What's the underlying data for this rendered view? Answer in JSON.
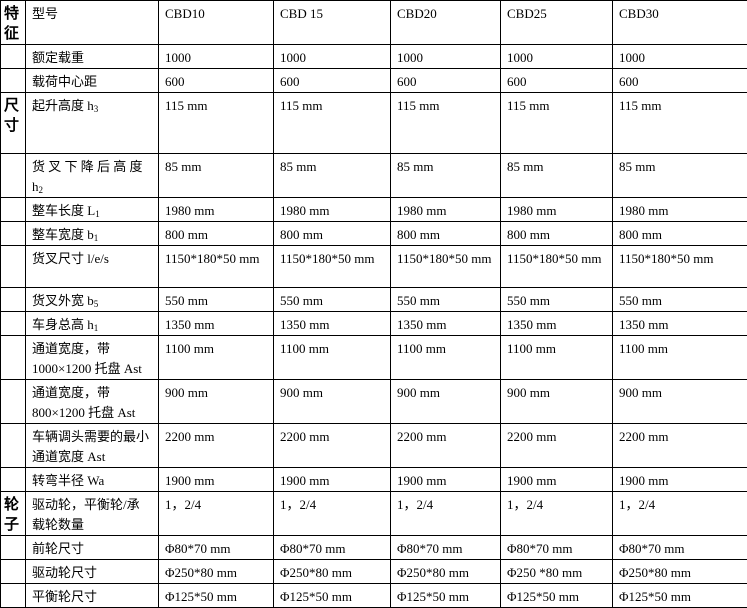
{
  "table": {
    "rows": [
      {
        "group": "特征",
        "label": "型号",
        "sub": "",
        "values": [
          "CBD10",
          "CBD 15",
          "CBD20",
          "CBD25",
          "CBD30"
        ]
      },
      {
        "group": "",
        "label": "额定载重",
        "sub": "",
        "values": [
          "1000",
          "1000",
          "1000",
          "1000",
          "1000"
        ]
      },
      {
        "group": "",
        "label": "载荷中心距",
        "sub": "",
        "values": [
          "600",
          "600",
          "600",
          "600",
          "600"
        ]
      },
      {
        "group": "尺寸",
        "label": "起升高度 h",
        "sub": "3",
        "values": [
          "115 mm",
          "115 mm",
          "115 mm",
          "115 mm",
          "115 mm"
        ]
      },
      {
        "group": "",
        "label": "货 叉 下 降 后 高 度 h",
        "sub": "2",
        "values": [
          "85 mm",
          "85 mm",
          "85 mm",
          "85 mm",
          "85 mm"
        ]
      },
      {
        "group": "",
        "label": "整车长度 L",
        "sub": "1",
        "values": [
          "1980 mm",
          "1980 mm",
          "1980 mm",
          "1980 mm",
          "1980 mm"
        ]
      },
      {
        "group": "",
        "label": "整车宽度 b",
        "sub": "1",
        "values": [
          "800 mm",
          "800 mm",
          "800 mm",
          "800 mm",
          "800 mm"
        ]
      },
      {
        "group": "",
        "label": "货叉尺寸 l/e/s",
        "sub": "",
        "values": [
          "1150*180*50 mm",
          "1150*180*50 mm",
          "1150*180*50 mm",
          "1150*180*50 mm",
          "1150*180*50 mm"
        ]
      },
      {
        "group": "",
        "label": "货叉外宽 b",
        "sub": "5",
        "values": [
          "550 mm",
          "550 mm",
          "550 mm",
          "550 mm",
          "550 mm"
        ]
      },
      {
        "group": "",
        "label": "车身总高 h",
        "sub": "1",
        "values": [
          "1350 mm",
          "1350 mm",
          "1350 mm",
          "1350 mm",
          "1350 mm"
        ]
      },
      {
        "group": "",
        "label": "通道宽度，带 1000×1200 托盘 Ast",
        "sub": "",
        "values": [
          "1100 mm",
          "1100 mm",
          "1100 mm",
          "1100 mm",
          "1100 mm"
        ]
      },
      {
        "group": "",
        "label": "通道宽度，带 800×1200 托盘 Ast",
        "sub": "",
        "values": [
          "900 mm",
          "900 mm",
          "900 mm",
          "900 mm",
          "900 mm"
        ]
      },
      {
        "group": "",
        "label": "车辆调头需要的最小通道宽度 Ast",
        "sub": "",
        "values": [
          "2200 mm",
          "2200 mm",
          "2200 mm",
          "2200 mm",
          "2200 mm"
        ]
      },
      {
        "group": "",
        "label": "转弯半径 Wa",
        "sub": "",
        "values": [
          "1900 mm",
          "1900 mm",
          "1900 mm",
          "1900 mm",
          "1900 mm"
        ]
      },
      {
        "group": "轮子",
        "label": "驱动轮，平衡轮/承载轮数量",
        "sub": "",
        "values": [
          "1，2/4",
          "1，2/4",
          "1，2/4",
          "1，2/4",
          "1，2/4"
        ]
      },
      {
        "group": "",
        "label": "前轮尺寸",
        "sub": "",
        "values": [
          "Φ80*70 mm",
          "Φ80*70 mm",
          "Φ80*70 mm",
          "Φ80*70 mm",
          "Φ80*70 mm"
        ]
      },
      {
        "group": "",
        "label": "驱动轮尺寸",
        "sub": "",
        "values": [
          "Φ250*80 mm",
          "Φ250*80 mm",
          "Φ250*80 mm",
          "Φ250 *80 mm",
          "Φ250*80 mm"
        ]
      },
      {
        "group": "",
        "label": "平衡轮尺寸",
        "sub": "",
        "values": [
          "Φ125*50 mm",
          "Φ125*50 mm",
          "Φ125*50 mm",
          "Φ125*50 mm",
          "Φ125*50 mm"
        ]
      }
    ]
  }
}
